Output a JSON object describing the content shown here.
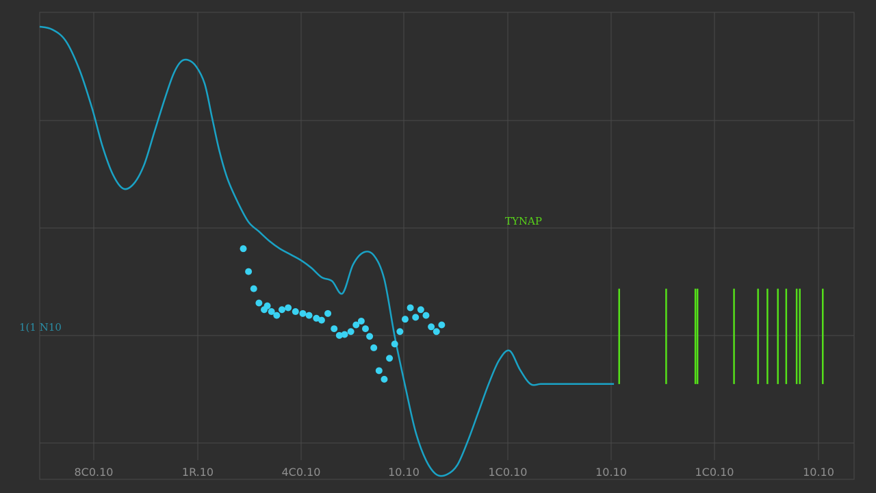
{
  "chart_data": {
    "type": "line",
    "title": "",
    "xlabel": "",
    "ylabel": "",
    "grid": true,
    "x_tick_labels": [
      "8C0.10",
      "1R.10",
      "4C0.10",
      "10.10",
      "1C0.10",
      "10.10",
      "1C0.10",
      "10.10"
    ],
    "annotations": {
      "left_label": "1(1 N10",
      "event_label": "TYNAP"
    },
    "colors": {
      "background": "#2e2e2e",
      "grid": "#4a4a4a",
      "curve": "#1aa3c6",
      "markers": "#3ad2f2",
      "events": "#55e01a"
    },
    "series": [
      {
        "kind": "curve",
        "x": [
          0.0,
          0.12,
          0.25,
          0.38,
          0.5,
          0.6,
          0.7,
          0.8,
          0.9,
          1.0,
          1.1,
          1.2,
          1.28,
          1.35,
          1.42,
          1.5,
          1.58,
          1.65,
          1.72,
          1.8,
          1.9,
          2.0,
          2.1,
          2.2,
          2.3,
          2.4,
          2.5,
          2.6,
          2.7,
          2.8,
          2.9,
          3.0,
          3.1,
          3.2,
          3.3,
          3.4,
          3.5,
          3.6,
          3.7,
          3.8,
          3.9,
          4.0,
          4.1,
          4.2,
          4.3,
          4.4,
          4.5,
          4.6,
          4.7,
          4.8,
          4.9,
          5.0,
          5.1,
          5.2,
          5.3,
          5.4,
          5.5
        ],
        "y": [
          3.75,
          3.72,
          3.6,
          3.3,
          2.9,
          2.5,
          2.2,
          2.05,
          2.1,
          2.3,
          2.65,
          3.0,
          3.25,
          3.38,
          3.4,
          3.33,
          3.15,
          2.8,
          2.45,
          2.15,
          1.9,
          1.7,
          1.6,
          1.5,
          1.42,
          1.36,
          1.3,
          1.22,
          1.12,
          1.08,
          0.95,
          1.25,
          1.38,
          1.35,
          1.1,
          0.5,
          -0.02,
          -0.5,
          -0.8,
          -0.95,
          -0.95,
          -0.85,
          -0.6,
          -0.3,
          0.0,
          0.25,
          0.35,
          0.15,
          0.0,
          0.0,
          0.0,
          0.0,
          0.0,
          0.0,
          0.0,
          0.0,
          0.0
        ]
      },
      {
        "kind": "markers",
        "points": [
          [
            1.95,
            1.42
          ],
          [
            2.0,
            1.18
          ],
          [
            2.05,
            1.0
          ],
          [
            2.1,
            0.85
          ],
          [
            2.15,
            0.78
          ],
          [
            2.18,
            0.82
          ],
          [
            2.22,
            0.76
          ],
          [
            2.27,
            0.72
          ],
          [
            2.32,
            0.78
          ],
          [
            2.38,
            0.8
          ],
          [
            2.45,
            0.76
          ],
          [
            2.52,
            0.74
          ],
          [
            2.58,
            0.72
          ],
          [
            2.65,
            0.69
          ],
          [
            2.7,
            0.67
          ],
          [
            2.76,
            0.74
          ],
          [
            2.82,
            0.58
          ],
          [
            2.87,
            0.51
          ],
          [
            2.92,
            0.52
          ],
          [
            2.98,
            0.55
          ],
          [
            3.03,
            0.62
          ],
          [
            3.08,
            0.66
          ],
          [
            3.12,
            0.58
          ],
          [
            3.16,
            0.5
          ],
          [
            3.2,
            0.38
          ],
          [
            3.25,
            0.14
          ],
          [
            3.3,
            0.05
          ],
          [
            3.35,
            0.27
          ],
          [
            3.4,
            0.42
          ],
          [
            3.45,
            0.55
          ],
          [
            3.5,
            0.68
          ],
          [
            3.55,
            0.8
          ],
          [
            3.6,
            0.7
          ],
          [
            3.65,
            0.78
          ],
          [
            3.7,
            0.72
          ],
          [
            3.75,
            0.6
          ],
          [
            3.8,
            0.55
          ],
          [
            3.85,
            0.62
          ]
        ]
      },
      {
        "kind": "events",
        "x": [
          5.55,
          6.0,
          6.28,
          6.3,
          6.65,
          6.88,
          6.97,
          7.07,
          7.15,
          7.25,
          7.28,
          7.5
        ],
        "y_from": 0.0,
        "y_to": 1.0
      }
    ]
  }
}
